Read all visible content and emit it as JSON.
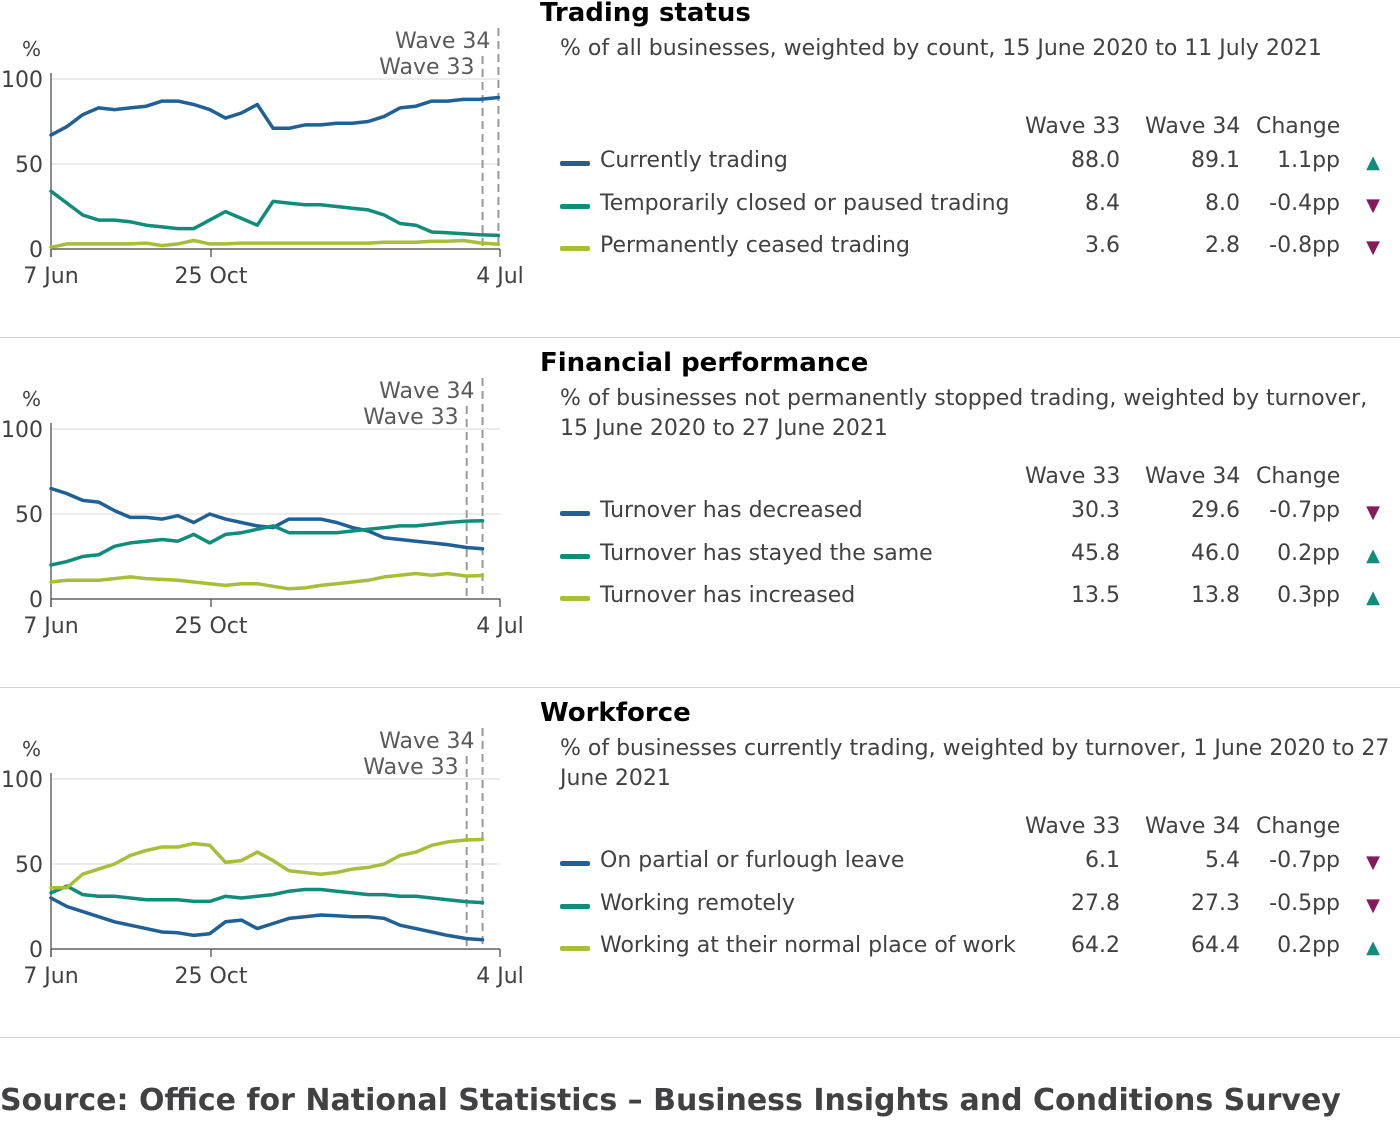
{
  "colors": {
    "series1": "#206095",
    "series2": "#118c7b",
    "series3": "#a8bd3a",
    "up": "#118c7b",
    "down": "#871a5b"
  },
  "table_headers": {
    "w33": "Wave 33",
    "w34": "Wave 34",
    "change": "Change"
  },
  "source": "Source: Office for National Statistics – Business Insights and Conditions Survey",
  "chart_data": [
    {
      "type": "line",
      "title": "Trading status",
      "subtitle": "% of all businesses, weighted by count, 15 June 2020 to 11 July 2021",
      "ylabel": "%",
      "ylim": [
        0,
        100
      ],
      "yticks": [
        0,
        50,
        100
      ],
      "xticks": [
        "7 Jun",
        "25 Oct",
        "4 Jul"
      ],
      "wave_labels": {
        "w34": "Wave 34",
        "w33": "Wave 33"
      },
      "wave_pos": {
        "w33": 28.2,
        "w34": 29.2
      },
      "x_end": 29.3,
      "series": [
        {
          "name": "Currently trading",
          "x": [
            1,
            2,
            3,
            4,
            5,
            6,
            7,
            8,
            9,
            10,
            11,
            12,
            13,
            14,
            15,
            16,
            17,
            18,
            19,
            20,
            21,
            22,
            23,
            24,
            25,
            26,
            27,
            28,
            29.2
          ],
          "values": [
            67,
            72,
            79,
            83,
            82,
            83,
            84,
            87,
            87,
            85,
            82,
            77,
            80,
            85,
            71,
            71,
            73,
            73,
            74,
            74,
            75,
            78,
            83,
            84,
            87,
            87,
            88,
            88,
            89.1
          ],
          "w33": "88.0",
          "w34": "89.1",
          "change": "1.1pp",
          "dir": "up"
        },
        {
          "name": "Temporarily closed or paused trading",
          "x": [
            1,
            2,
            3,
            4,
            5,
            6,
            7,
            8,
            9,
            10,
            11,
            12,
            13,
            14,
            15,
            16,
            17,
            18,
            19,
            20,
            21,
            22,
            23,
            24,
            25,
            26,
            27,
            28,
            29.2
          ],
          "values": [
            34,
            27,
            20,
            17,
            17,
            16,
            14,
            13,
            12,
            12,
            17,
            22,
            18,
            14,
            28,
            27,
            26,
            26,
            25,
            24,
            23,
            20,
            15,
            14,
            10,
            9.5,
            9,
            8.4,
            8.0
          ],
          "w33": "8.4",
          "w34": "8.0",
          "change": "-0.4pp",
          "dir": "down"
        },
        {
          "name": "Permanently ceased trading",
          "x": [
            1,
            2,
            3,
            4,
            5,
            6,
            7,
            8,
            9,
            10,
            11,
            12,
            13,
            14,
            15,
            16,
            17,
            18,
            19,
            20,
            21,
            22,
            23,
            24,
            25,
            26,
            27,
            28,
            29.2
          ],
          "values": [
            1,
            3,
            3,
            3,
            3,
            3,
            3.5,
            2,
            3,
            5,
            3,
            3,
            3.5,
            3.5,
            3.5,
            3.5,
            3.5,
            3.5,
            3.5,
            3.5,
            3.5,
            4,
            4,
            4,
            4.5,
            4.5,
            5,
            3.6,
            2.8
          ],
          "w33": "3.6",
          "w34": "2.8",
          "change": "-0.8pp",
          "dir": "down"
        }
      ]
    },
    {
      "type": "line",
      "title": "Financial performance",
      "subtitle": "% of businesses not permanently stopped trading, weighted by turnover, 15 June 2020 to 27 June 2021",
      "ylabel": "%",
      "ylim": [
        0,
        100
      ],
      "yticks": [
        0,
        50,
        100
      ],
      "xticks": [
        "7 Jun",
        "25 Oct",
        "4 Jul"
      ],
      "wave_labels": {
        "w34": "Wave 34",
        "w33": "Wave 33"
      },
      "wave_pos": {
        "w33": 27.2,
        "w34": 28.2
      },
      "x_end": 29.3,
      "series": [
        {
          "name": "Turnover has decreased",
          "x": [
            1,
            2,
            3,
            4,
            5,
            6,
            7,
            8,
            9,
            10,
            11,
            12,
            13,
            14,
            15,
            16,
            17,
            18,
            19,
            20,
            21,
            22,
            23,
            24,
            25,
            26,
            27.2,
            28.2
          ],
          "values": [
            65,
            62,
            58,
            57,
            52,
            48,
            48,
            47,
            49,
            45,
            50,
            47,
            45,
            43,
            42,
            47,
            47,
            47,
            45,
            42,
            40,
            36,
            35,
            34,
            33,
            32,
            30.3,
            29.6
          ],
          "w33": "30.3",
          "w34": "29.6",
          "change": "-0.7pp",
          "dir": "down"
        },
        {
          "name": "Turnover has stayed the same",
          "x": [
            1,
            2,
            3,
            4,
            5,
            6,
            7,
            8,
            9,
            10,
            11,
            12,
            13,
            14,
            15,
            16,
            17,
            18,
            19,
            20,
            21,
            22,
            23,
            24,
            25,
            26,
            27.2,
            28.2
          ],
          "values": [
            20,
            22,
            25,
            26,
            31,
            33,
            34,
            35,
            34,
            38,
            33,
            38,
            39,
            41,
            43,
            39,
            39,
            39,
            39,
            40,
            41,
            42,
            43,
            43,
            44,
            45,
            45.8,
            46.0
          ],
          "w33": "45.8",
          "w34": "46.0",
          "change": "0.2pp",
          "dir": "up"
        },
        {
          "name": "Turnover has increased",
          "x": [
            1,
            2,
            3,
            4,
            5,
            6,
            7,
            8,
            9,
            10,
            11,
            12,
            13,
            14,
            15,
            16,
            17,
            18,
            19,
            20,
            21,
            22,
            23,
            24,
            25,
            26,
            27.2,
            28.2
          ],
          "values": [
            10,
            11,
            11,
            11,
            12,
            13,
            12,
            11.5,
            11,
            10,
            9,
            8,
            9,
            9,
            7.5,
            6,
            6.5,
            8,
            9,
            10,
            11,
            13,
            14,
            15,
            14,
            15,
            13.5,
            13.8
          ],
          "w33": "13.5",
          "w34": "13.8",
          "change": "0.3pp",
          "dir": "up"
        }
      ]
    },
    {
      "type": "line",
      "title": "Workforce",
      "subtitle": "% of businesses currently trading, weighted by turnover, 1 June 2020 to 27 June 2021",
      "ylabel": "%",
      "ylim": [
        0,
        100
      ],
      "yticks": [
        0,
        50,
        100
      ],
      "xticks": [
        "7 Jun",
        "25 Oct",
        "4 Jul"
      ],
      "wave_labels": {
        "w34": "Wave 34",
        "w33": "Wave 33"
      },
      "wave_pos": {
        "w33": 27.2,
        "w34": 28.2
      },
      "x_end": 29.3,
      "series": [
        {
          "name": "On partial or furlough leave",
          "x": [
            1,
            2,
            3,
            4,
            5,
            6,
            7,
            8,
            9,
            10,
            11,
            12,
            13,
            14,
            15,
            16,
            17,
            18,
            19,
            20,
            21,
            22,
            23,
            24,
            25,
            26,
            27.2,
            28.2
          ],
          "values": [
            30,
            25,
            22,
            19,
            16,
            14,
            12,
            10,
            9.5,
            8,
            9,
            16,
            17,
            12,
            15,
            18,
            19,
            20,
            19.5,
            19,
            19,
            18,
            14,
            12,
            10,
            8,
            6.1,
            5.4
          ],
          "w33": "6.1",
          "w34": "5.4",
          "change": "-0.7pp",
          "dir": "down"
        },
        {
          "name": "Working remotely",
          "x": [
            1,
            2,
            3,
            4,
            5,
            6,
            7,
            8,
            9,
            10,
            11,
            12,
            13,
            14,
            15,
            16,
            17,
            18,
            19,
            20,
            21,
            22,
            23,
            24,
            25,
            26,
            27.2,
            28.2
          ],
          "values": [
            33,
            37,
            32,
            31,
            31,
            30,
            29,
            29,
            29,
            28,
            28,
            31,
            30,
            31,
            32,
            34,
            35,
            35,
            34,
            33,
            32,
            32,
            31,
            31,
            30,
            29,
            27.8,
            27.3
          ],
          "w33": "27.8",
          "w34": "27.3",
          "change": "-0.5pp",
          "dir": "down"
        },
        {
          "name": "Working at their normal place of work",
          "x": [
            1,
            2,
            3,
            4,
            5,
            6,
            7,
            8,
            9,
            10,
            11,
            12,
            13,
            14,
            15,
            16,
            17,
            18,
            19,
            20,
            21,
            22,
            23,
            24,
            25,
            26,
            27.2,
            28.2
          ],
          "values": [
            36,
            36,
            44,
            47,
            50,
            55,
            58,
            60,
            60,
            62,
            61,
            51,
            52,
            57,
            52,
            46,
            45,
            44,
            45,
            47,
            48,
            50,
            55,
            57,
            61,
            63,
            64.2,
            64.4
          ],
          "w33": "64.2",
          "w34": "64.4",
          "change": "0.2pp",
          "dir": "up"
        }
      ]
    }
  ]
}
